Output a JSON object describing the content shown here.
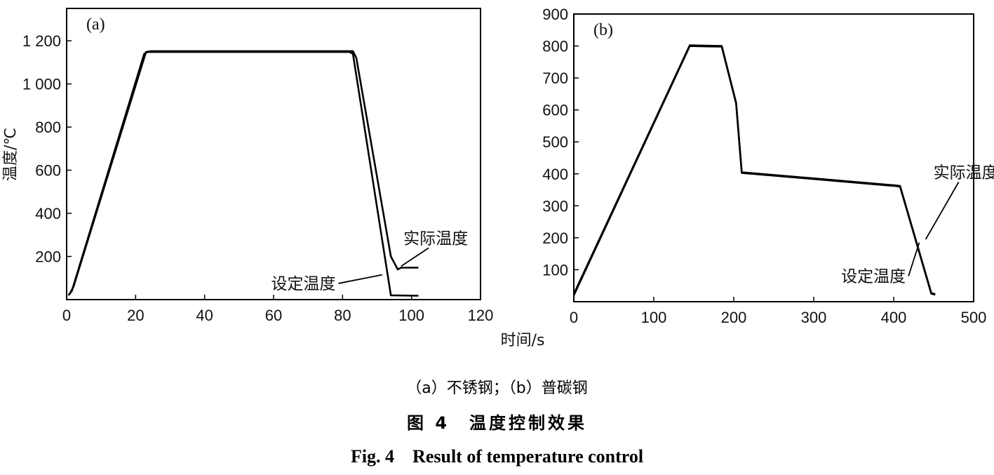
{
  "chart_data": [
    {
      "type": "line",
      "panel_label": "(a)",
      "ylabel": "温度/℃",
      "xlim": [
        0,
        120
      ],
      "ylim": [
        0,
        1350
      ],
      "xticks": [
        0,
        20,
        40,
        60,
        80,
        100,
        120
      ],
      "yticks": [
        200,
        400,
        600,
        800,
        1000,
        1200
      ],
      "xtick_labels": [
        "0",
        "20",
        "40",
        "60",
        "80",
        "100",
        "120"
      ],
      "ytick_labels": [
        "200",
        "400",
        "600",
        "800",
        "1 000",
        "1 200"
      ],
      "series": [
        {
          "role": "set",
          "x": [
            0.5,
            1.5,
            22.5,
            23.5,
            82,
            83,
            94,
            102
          ],
          "y": [
            20,
            40,
            1140,
            1148,
            1148,
            1140,
            20,
            18
          ]
        },
        {
          "role": "actual",
          "x": [
            1,
            2,
            23,
            24.5,
            83,
            84,
            94,
            96,
            97,
            102
          ],
          "y": [
            30,
            60,
            1148,
            1152,
            1152,
            1120,
            200,
            140,
            148,
            148
          ]
        }
      ],
      "annotations": [
        {
          "text": "实际温度",
          "x": 107,
          "y": 285,
          "to_x": 97,
          "to_y": 155
        },
        {
          "text": "设定温度",
          "x": 78,
          "y": 75,
          "to_x": 91.5,
          "to_y": 115
        }
      ]
    },
    {
      "type": "line",
      "panel_label": "(b)",
      "ylabel": "",
      "xlim": [
        0,
        500
      ],
      "ylim": [
        0,
        900
      ],
      "xticks": [
        0,
        100,
        200,
        300,
        400,
        500
      ],
      "yticks": [
        100,
        200,
        300,
        400,
        500,
        600,
        700,
        800,
        900
      ],
      "xtick_labels": [
        "0",
        "100",
        "200",
        "300",
        "400",
        "500"
      ],
      "ytick_labels": [
        "100",
        "200",
        "300",
        "400",
        "500",
        "600",
        "700",
        "800",
        "900"
      ],
      "series": [
        {
          "role": "set",
          "x": [
            0,
            145,
            185,
            203,
            210,
            402,
            408,
            447,
            452
          ],
          "y": [
            20,
            800,
            798,
            620,
            403,
            362,
            360,
            25,
            22
          ]
        },
        {
          "role": "actual",
          "x": [
            0,
            145,
            185,
            203,
            210,
            402,
            408,
            447,
            452
          ],
          "y": [
            24,
            802,
            800,
            622,
            405,
            364,
            362,
            27,
            24
          ]
        }
      ],
      "annotations": [
        {
          "text": "实际温度",
          "x": 490,
          "y": 405,
          "to_x": 440,
          "to_y": 195
        },
        {
          "text": "设定温度",
          "x": 415,
          "y": 80,
          "to_x": 432,
          "to_y": 185
        }
      ]
    }
  ],
  "shared_xlabel": "时间/s",
  "captions": {
    "sub": "（a）不锈钢；（b）普碳钢",
    "cn": "图 4　温度控制效果",
    "en": "Fig. 4　Result of temperature control"
  }
}
